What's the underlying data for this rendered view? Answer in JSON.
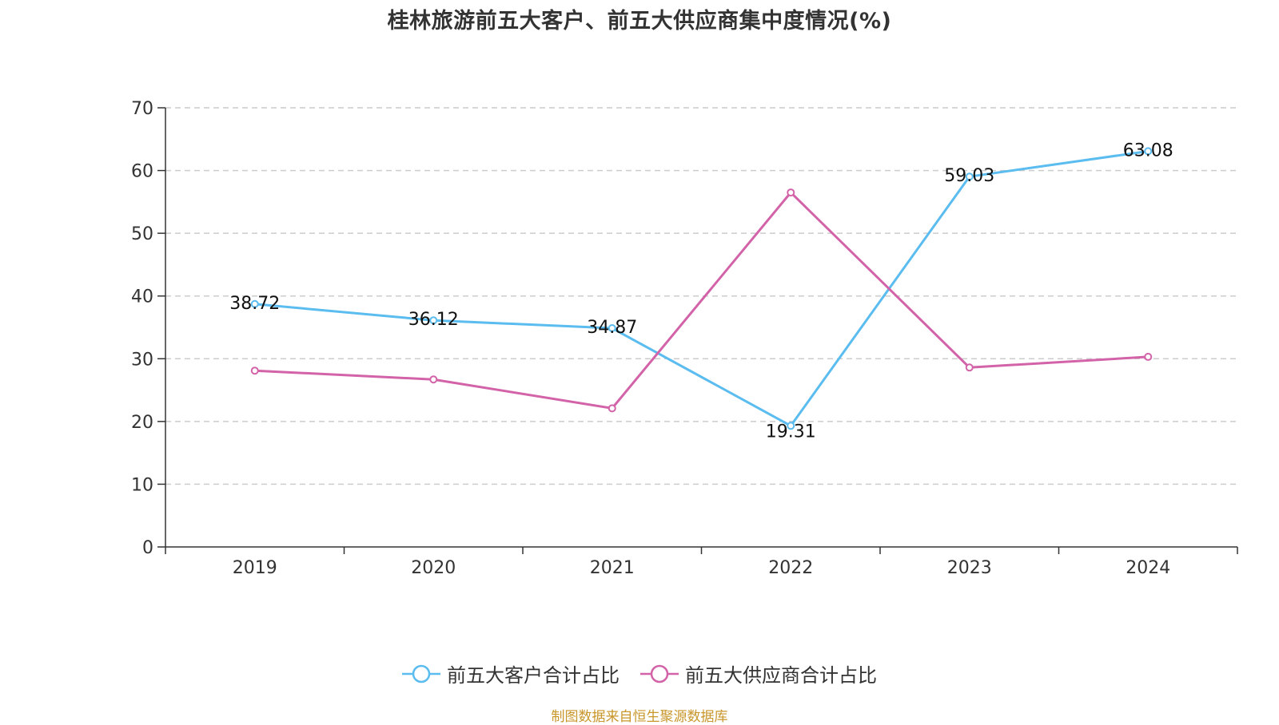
{
  "chart_data": {
    "type": "line",
    "title": "桂林旅游前五大客户、前五大供应商集中度情况(%)",
    "categories": [
      "2019",
      "2020",
      "2021",
      "2022",
      "2023",
      "2024"
    ],
    "series": [
      {
        "name": "前五大客户合计占比",
        "color": "#5bbcef",
        "values": [
          38.72,
          36.12,
          34.87,
          19.31,
          59.03,
          63.08
        ],
        "show_labels": true,
        "labels": [
          "38.72",
          "36.12",
          "34.87",
          "19.31",
          "59.03",
          "63.08"
        ]
      },
      {
        "name": "前五大供应商合计占比",
        "color": "#d363a8",
        "values": [
          28.1,
          26.7,
          22.1,
          56.5,
          28.6,
          30.3
        ],
        "show_labels": false
      }
    ],
    "ylim": [
      0,
      70
    ],
    "yticks": [
      "0",
      "10",
      "20",
      "30",
      "40",
      "50",
      "60",
      "70"
    ],
    "grid": true,
    "legend_position": "bottom-center"
  },
  "source_note": "制图数据来自恒生聚源数据库"
}
